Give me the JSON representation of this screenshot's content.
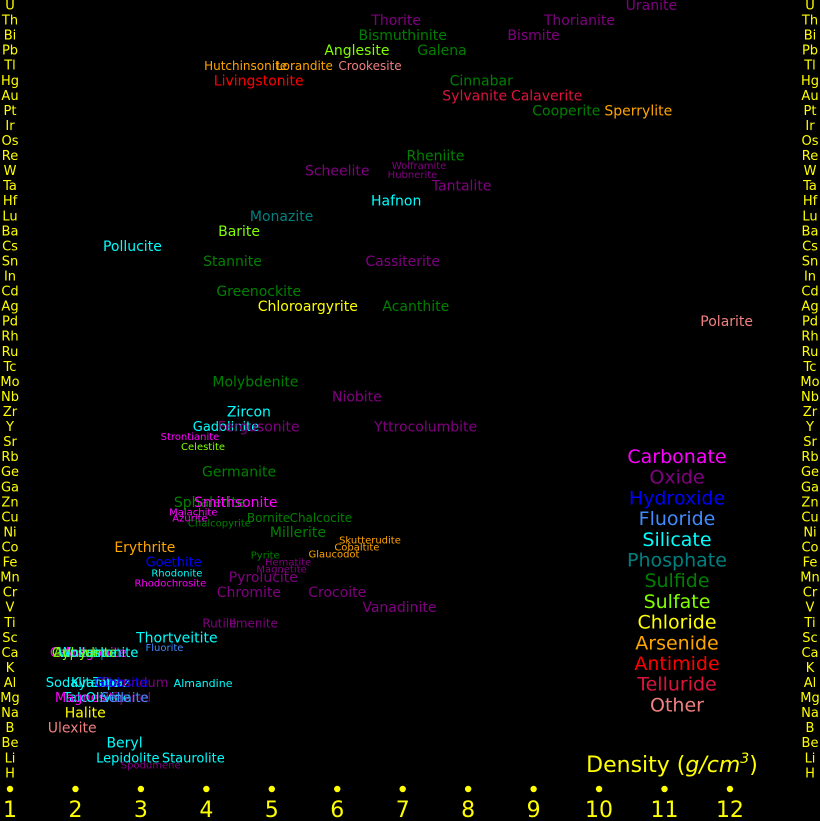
{
  "chart_data": {
    "type": "scatter",
    "title": "",
    "xlabel": "Density (g/cm³)",
    "xlabel_parts": [
      "Density (",
      "g/cm",
      "3",
      ")"
    ],
    "xlim": [
      1,
      12
    ],
    "x_ticks": [
      "1",
      "2",
      "3",
      "4",
      "5",
      "6",
      "7",
      "8",
      "9",
      "10",
      "11",
      "12"
    ],
    "y_categories": [
      "H",
      "Li",
      "Be",
      "B",
      "Na",
      "Mg",
      "Al",
      "K",
      "Ca",
      "Sc",
      "Ti",
      "V",
      "Cr",
      "Mn",
      "Fe",
      "Co",
      "Ni",
      "Cu",
      "Zn",
      "Ga",
      "Ge",
      "Rb",
      "Sr",
      "Y",
      "Zr",
      "Nb",
      "Mo",
      "Tc",
      "Ru",
      "Rh",
      "Pd",
      "Ag",
      "Cd",
      "In",
      "Sn",
      "Cs",
      "Ba",
      "Lu",
      "Hf",
      "Ta",
      "W",
      "Re",
      "Os",
      "Ir",
      "Pt",
      "Au",
      "Hg",
      "Tl",
      "Pb",
      "Bi",
      "Th",
      "U"
    ],
    "colors": {
      "background": "#000000",
      "axis_text": "#ffff00",
      "tick_dot": "#ffff00",
      "Carbonate": "#ff00ff",
      "Oxide": "#800080",
      "Hydroxide": "#0000ff",
      "Fluoride": "#3f8cff",
      "Silicate": "#00ffff",
      "Phosphate": "#008080",
      "Sulfide": "#008000",
      "Sulfate": "#7fff00",
      "Chloride": "#ffff00",
      "Arsenide": "#ffa500",
      "Antimide": "#ff0000",
      "Telluride": "#dc143c",
      "Other": "#f08080"
    },
    "legend": {
      "position": "right",
      "entries": [
        "Carbonate",
        "Oxide",
        "Hydroxide",
        "Fluoride",
        "Silicate",
        "Phosphate",
        "Sulfide",
        "Sulfate",
        "Chloride",
        "Arsenide",
        "Antimide",
        "Telluride",
        "Other"
      ]
    },
    "series": [
      {
        "label": "Uranite",
        "x": 10.8,
        "y": "U",
        "cls": "Oxide",
        "size": 14
      },
      {
        "label": "Thorite",
        "x": 6.9,
        "y": "Th",
        "cls": "Oxide",
        "size": 14
      },
      {
        "label": "Thorianite",
        "x": 9.7,
        "y": "Th",
        "cls": "Oxide",
        "size": 14
      },
      {
        "label": "Bismuthinite",
        "x": 7.0,
        "y": "Bi",
        "cls": "Sulfide",
        "size": 14
      },
      {
        "label": "Bismite",
        "x": 9.0,
        "y": "Bi",
        "cls": "Oxide",
        "size": 14
      },
      {
        "label": "Anglesite",
        "x": 6.3,
        "y": "Pb",
        "cls": "Sulfate",
        "size": 14
      },
      {
        "label": "Galena",
        "x": 7.6,
        "y": "Pb",
        "cls": "Sulfide",
        "size": 14
      },
      {
        "label": "Hutchinsonite",
        "x": 4.6,
        "y": "Tl",
        "cls": "Arsenide",
        "size": 12
      },
      {
        "label": "Lorandite",
        "x": 5.5,
        "y": "Tl",
        "cls": "Arsenide",
        "size": 12
      },
      {
        "label": "Crookesite",
        "x": 6.5,
        "y": "Tl",
        "cls": "Other",
        "size": 12
      },
      {
        "label": "Livingstonite",
        "x": 4.8,
        "y": "Hg",
        "cls": "Antimide",
        "size": 14
      },
      {
        "label": "Cinnabar",
        "x": 8.2,
        "y": "Hg",
        "cls": "Sulfide",
        "size": 14
      },
      {
        "label": "Sylvanite",
        "x": 8.1,
        "y": "Au",
        "cls": "Telluride",
        "size": 14
      },
      {
        "label": "Calaverite",
        "x": 9.2,
        "y": "Au",
        "cls": "Telluride",
        "size": 14
      },
      {
        "label": "Cooperite",
        "x": 9.5,
        "y": "Pt",
        "cls": "Sulfide",
        "size": 14
      },
      {
        "label": "Sperrylite",
        "x": 10.6,
        "y": "Pt",
        "cls": "Arsenide",
        "size": 14
      },
      {
        "label": "Rheniite",
        "x": 7.5,
        "y": "Re",
        "cls": "Sulfide",
        "size": 14
      },
      {
        "label": "Scheelite",
        "x": 6.0,
        "y": "W",
        "cls": "Oxide",
        "size": 14
      },
      {
        "label": "Wolframite",
        "x": 7.25,
        "y": "W",
        "cls": "Oxide",
        "size": 10,
        "dy": -5
      },
      {
        "label": "Hubnerite",
        "x": 7.15,
        "y": "W",
        "cls": "Oxide",
        "size": 10,
        "dy": 4
      },
      {
        "label": "Tantalite",
        "x": 7.9,
        "y": "Ta",
        "cls": "Oxide",
        "size": 14
      },
      {
        "label": "Hafnon",
        "x": 6.9,
        "y": "Hf",
        "cls": "Silicate",
        "size": 14
      },
      {
        "label": "Monazite",
        "x": 5.15,
        "y": "Lu",
        "cls": "Phosphate",
        "size": 14
      },
      {
        "label": "Barite",
        "x": 4.5,
        "y": "Ba",
        "cls": "Sulfate",
        "size": 14
      },
      {
        "label": "Pollucite",
        "x": 2.87,
        "y": "Cs",
        "cls": "Silicate",
        "size": 14
      },
      {
        "label": "Stannite",
        "x": 4.4,
        "y": "Sn",
        "cls": "Sulfide",
        "size": 14
      },
      {
        "label": "Cassiterite",
        "x": 7.0,
        "y": "Sn",
        "cls": "Oxide",
        "size": 14
      },
      {
        "label": "Greenockite",
        "x": 4.8,
        "y": "Cd",
        "cls": "Sulfide",
        "size": 14
      },
      {
        "label": "Chloroargyrite",
        "x": 5.55,
        "y": "Ag",
        "cls": "Chloride",
        "size": 14
      },
      {
        "label": "Acanthite",
        "x": 7.2,
        "y": "Ag",
        "cls": "Sulfide",
        "size": 14
      },
      {
        "label": "Polarite",
        "x": 11.95,
        "y": "Pd",
        "cls": "Other",
        "size": 14
      },
      {
        "label": "Molybdenite",
        "x": 4.75,
        "y": "Mo",
        "cls": "Sulfide",
        "size": 14
      },
      {
        "label": "Niobite",
        "x": 6.3,
        "y": "Nb",
        "cls": "Oxide",
        "size": 14
      },
      {
        "label": "Zircon",
        "x": 4.65,
        "y": "Zr",
        "cls": "Silicate",
        "size": 14
      },
      {
        "label": "Gadolinite",
        "x": 4.3,
        "y": "Y",
        "cls": "Silicate",
        "size": 13
      },
      {
        "label": "Fergusonite",
        "x": 4.8,
        "y": "Y",
        "cls": "Oxide",
        "size": 14
      },
      {
        "label": "Yttrocolumbite",
        "x": 7.35,
        "y": "Y",
        "cls": "Oxide",
        "size": 14
      },
      {
        "label": "Strontianite",
        "x": 3.75,
        "y": "Sr",
        "cls": "Carbonate",
        "size": 10,
        "dy": -5
      },
      {
        "label": "Celestite",
        "x": 3.95,
        "y": "Sr",
        "cls": "Sulfate",
        "size": 10,
        "dy": 5
      },
      {
        "label": "Germanite",
        "x": 4.5,
        "y": "Ge",
        "cls": "Sulfide",
        "size": 14
      },
      {
        "label": "Sphalerite",
        "x": 4.05,
        "y": "Zn",
        "cls": "Sulfide",
        "size": 14
      },
      {
        "label": "Smithsonite",
        "x": 4.45,
        "y": "Zn",
        "cls": "Carbonate",
        "size": 14
      },
      {
        "label": "Malachite",
        "x": 3.8,
        "y": "Cu",
        "cls": "Carbonate",
        "size": 10,
        "dy": -5
      },
      {
        "label": "Azurite",
        "x": 3.75,
        "y": "Cu",
        "cls": "Carbonate",
        "size": 10,
        "dy": 1
      },
      {
        "label": "Chalcopyrite",
        "x": 4.2,
        "y": "Cu",
        "cls": "Sulfide",
        "size": 10,
        "dy": 6
      },
      {
        "label": "Bornite",
        "x": 4.95,
        "y": "Cu",
        "cls": "Sulfide",
        "size": 12
      },
      {
        "label": "Chalcocite",
        "x": 5.75,
        "y": "Cu",
        "cls": "Sulfide",
        "size": 12
      },
      {
        "label": "Millerite",
        "x": 5.4,
        "y": "Ni",
        "cls": "Sulfide",
        "size": 14
      },
      {
        "label": "Erythrite",
        "x": 3.06,
        "y": "Co",
        "cls": "Arsenide",
        "size": 14
      },
      {
        "label": "Skutterudite",
        "x": 6.5,
        "y": "Co",
        "cls": "Arsenide",
        "size": 10,
        "dy": -7
      },
      {
        "label": "Cobaltite",
        "x": 6.3,
        "y": "Co",
        "cls": "Arsenide",
        "size": 10,
        "dy": 0
      },
      {
        "label": "Glaucodot",
        "x": 5.95,
        "y": "Co",
        "cls": "Arsenide",
        "size": 10,
        "dy": 7
      },
      {
        "label": "Pyrite",
        "x": 4.9,
        "y": "Fe",
        "cls": "Sulfide",
        "size": 10,
        "dy": -7
      },
      {
        "label": "Hematite",
        "x": 5.25,
        "y": "Fe",
        "cls": "Oxide",
        "size": 10,
        "dy": 0
      },
      {
        "label": "Magnetite",
        "x": 5.15,
        "y": "Fe",
        "cls": "Oxide",
        "size": 10,
        "dy": 7
      },
      {
        "label": "Goethite",
        "x": 3.5,
        "y": "Fe",
        "cls": "Hydroxide",
        "size": 13
      },
      {
        "label": "Rhodonite",
        "x": 3.55,
        "y": "Mn",
        "cls": "Silicate",
        "size": 10,
        "dy": -4
      },
      {
        "label": "Rhodochrosite",
        "x": 3.45,
        "y": "Mn",
        "cls": "Carbonate",
        "size": 10,
        "dy": 6
      },
      {
        "label": "Pyrolucite",
        "x": 4.87,
        "y": "Mn",
        "cls": "Oxide",
        "size": 14
      },
      {
        "label": "Chromite",
        "x": 4.65,
        "y": "Cr",
        "cls": "Oxide",
        "size": 14
      },
      {
        "label": "Crocoite",
        "x": 6.0,
        "y": "Cr",
        "cls": "Oxide",
        "size": 14
      },
      {
        "label": "Vanadinite",
        "x": 6.95,
        "y": "V",
        "cls": "Oxide",
        "size": 14
      },
      {
        "label": "Rutile",
        "x": 4.2,
        "y": "Ti",
        "cls": "Oxide",
        "size": 12
      },
      {
        "label": "Ilmenite",
        "x": 4.72,
        "y": "Ti",
        "cls": "Oxide",
        "size": 12
      },
      {
        "label": "Thortveitite",
        "x": 3.55,
        "y": "Sc",
        "cls": "Silicate",
        "size": 14
      },
      {
        "label": "Fluorite",
        "x": 3.36,
        "y": "Ca",
        "cls": "Fluoride",
        "size": 10,
        "dy": -5
      },
      {
        "label": "Calcite",
        "x": 1.95,
        "y": "Ca",
        "cls": "Carbonate",
        "size": 13
      },
      {
        "label": "Aragonite",
        "x": 2.3,
        "y": "Ca",
        "cls": "Carbonate",
        "size": 13
      },
      {
        "label": "Apatite",
        "x": 2.6,
        "y": "Ca",
        "cls": "Phosphate",
        "size": 13
      },
      {
        "label": "Gypsum",
        "x": 2.05,
        "y": "Ca",
        "cls": "Sulfate",
        "size": 13
      },
      {
        "label": "Anhydrite",
        "x": 2.15,
        "y": "Ca",
        "cls": "Sulfate",
        "size": 13
      },
      {
        "label": "Wollastonite",
        "x": 2.35,
        "y": "Ca",
        "cls": "Silicate",
        "size": 13
      },
      {
        "label": "Sodalite",
        "x": 1.95,
        "y": "Al",
        "cls": "Silicate",
        "size": 13
      },
      {
        "label": "Kyanite",
        "x": 2.3,
        "y": "Al",
        "cls": "Silicate",
        "size": 13
      },
      {
        "label": "Topaz",
        "x": 2.55,
        "y": "Al",
        "cls": "Silicate",
        "size": 13
      },
      {
        "label": "Corundum",
        "x": 2.9,
        "y": "Al",
        "cls": "Oxide",
        "size": 13
      },
      {
        "label": "Gibbsite",
        "x": 2.7,
        "y": "Al",
        "cls": "Hydroxide",
        "size": 13
      },
      {
        "label": "Almandine",
        "x": 3.95,
        "y": "Al",
        "cls": "Silicate",
        "size": 11
      },
      {
        "label": "Talc",
        "x": 2.0,
        "y": "Mg",
        "cls": "Silicate",
        "size": 13
      },
      {
        "label": "Magnesite",
        "x": 2.2,
        "y": "Mg",
        "cls": "Carbonate",
        "size": 13
      },
      {
        "label": "Olivine",
        "x": 2.5,
        "y": "Mg",
        "cls": "Silicate",
        "size": 13
      },
      {
        "label": "Spinel",
        "x": 2.85,
        "y": "Mg",
        "cls": "Oxide",
        "size": 13
      },
      {
        "label": "Sellaite",
        "x": 2.75,
        "y": "Mg",
        "cls": "Fluoride",
        "size": 13
      },
      {
        "label": "Halite",
        "x": 2.15,
        "y": "Na",
        "cls": "Chloride",
        "size": 14
      },
      {
        "label": "Ulexite",
        "x": 1.95,
        "y": "B",
        "cls": "Other",
        "size": 14
      },
      {
        "label": "Beryl",
        "x": 2.75,
        "y": "Be",
        "cls": "Silicate",
        "size": 14
      },
      {
        "label": "Lepidolite",
        "x": 2.8,
        "y": "Li",
        "cls": "Silicate",
        "size": 13
      },
      {
        "label": "Staurolite",
        "x": 3.8,
        "y": "Li",
        "cls": "Silicate",
        "size": 13
      },
      {
        "label": "Spodumene",
        "x": 3.15,
        "y": "Li",
        "cls": "Oxide",
        "size": 10,
        "dy": 7
      }
    ]
  }
}
